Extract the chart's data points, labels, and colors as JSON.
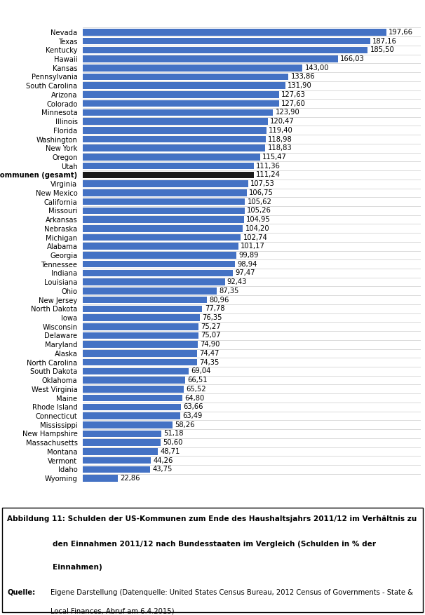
{
  "categories": [
    "Nevada",
    "Texas",
    "Kentucky",
    "Hawaii",
    "Kansas",
    "Pennsylvania",
    "South Carolina",
    "Arizona",
    "Colorado",
    "Minnesota",
    "Illinois",
    "Florida",
    "Washington",
    "New York",
    "Oregon",
    "Utah",
    "US-Kommunen (gesamt)",
    "Virginia",
    "New Mexico",
    "California",
    "Missouri",
    "Arkansas",
    "Nebraska",
    "Michigan",
    "Alabama",
    "Georgia",
    "Tennessee",
    "Indiana",
    "Louisiana",
    "Ohio",
    "New Jersey",
    "North Dakota",
    "Iowa",
    "Wisconsin",
    "Delaware",
    "Maryland",
    "Alaska",
    "North Carolina",
    "South Dakota",
    "Oklahoma",
    "West Virginia",
    "Maine",
    "Rhode Island",
    "Connecticut",
    "Mississippi",
    "New Hampshire",
    "Massachusetts",
    "Montana",
    "Vermont",
    "Idaho",
    "Wyoming"
  ],
  "values": [
    197.66,
    187.16,
    185.5,
    166.03,
    143.0,
    133.86,
    131.9,
    127.63,
    127.6,
    123.9,
    120.47,
    119.4,
    118.98,
    118.83,
    115.47,
    111.36,
    111.24,
    107.53,
    106.75,
    105.62,
    105.26,
    104.95,
    104.2,
    102.74,
    101.17,
    99.89,
    98.94,
    97.47,
    92.43,
    87.35,
    80.96,
    77.78,
    76.35,
    75.27,
    75.07,
    74.9,
    74.47,
    74.35,
    69.04,
    66.51,
    65.52,
    64.8,
    63.66,
    63.49,
    58.26,
    51.18,
    50.6,
    48.71,
    44.26,
    43.75,
    22.86
  ],
  "bar_color_normal": "#4472c4",
  "bar_color_highlight": "#1a1a1a",
  "highlight_index": 16,
  "xlim": [
    0,
    220
  ],
  "background_color": "#ffffff",
  "bar_height": 0.75,
  "label_fontsize": 7.2,
  "value_fontsize": 7.2
}
